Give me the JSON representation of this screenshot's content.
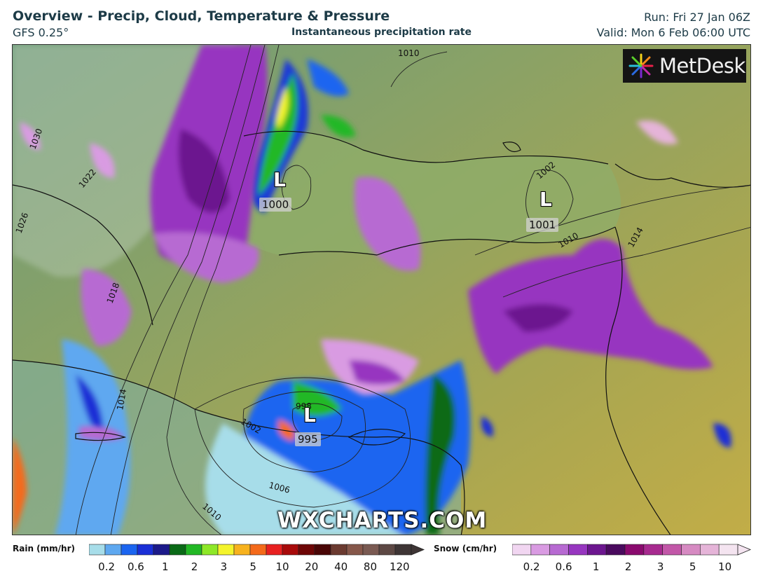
{
  "header": {
    "title": "Overview - Precip, Cloud, Temperature & Pressure",
    "model": "GFS 0.25°",
    "subtitle": "Instantaneous precipitation rate",
    "run": "Run: Fri 27 Jan 06Z",
    "valid": "Valid: Mon 6 Feb 06:00 UTC"
  },
  "map": {
    "logo": "MetDesk",
    "watermark": "WXCHARTS.COM",
    "lows": [
      {
        "symbol": "L",
        "pressure": "1000"
      },
      {
        "symbol": "L",
        "pressure": "1001"
      },
      {
        "symbol": "L",
        "pressure": "995"
      }
    ],
    "isobar_labels": [
      "1010",
      "1002",
      "1014",
      "1010",
      "1018",
      "1022",
      "1026",
      "1030",
      "1014",
      "1002",
      "1006",
      "1010",
      "998"
    ]
  },
  "legend": {
    "rain": {
      "title": "Rain (mm/hr)",
      "ticks": [
        "0.2",
        "0.6",
        "1",
        "2",
        "3",
        "5",
        "10",
        "20",
        "40",
        "80",
        "120"
      ],
      "colors": [
        "#a7dde9",
        "#5ea8f0",
        "#1b65f0",
        "#1a2fd6",
        "#1c1a8a",
        "#0a6a17",
        "#22b825",
        "#8ee828",
        "#f4f42c",
        "#f7b21e",
        "#f46a1a",
        "#e82020",
        "#a80a0a",
        "#6e0606",
        "#4a0606",
        "#6b3a30",
        "#86574a",
        "#7a5a52",
        "#5d4844",
        "#3e3535"
      ]
    },
    "snow": {
      "title": "Snow (cm/hr)",
      "ticks": [
        "0.2",
        "0.6",
        "1",
        "2",
        "3",
        "5",
        "10"
      ],
      "colors": [
        "#f1d6f1",
        "#d99be2",
        "#b76ad2",
        "#9736c0",
        "#6c168f",
        "#4a0a5e",
        "#8a0a6e",
        "#a72a8f",
        "#c257a8",
        "#d68ac2",
        "#e5b4d8",
        "#f4e4f0"
      ]
    }
  }
}
